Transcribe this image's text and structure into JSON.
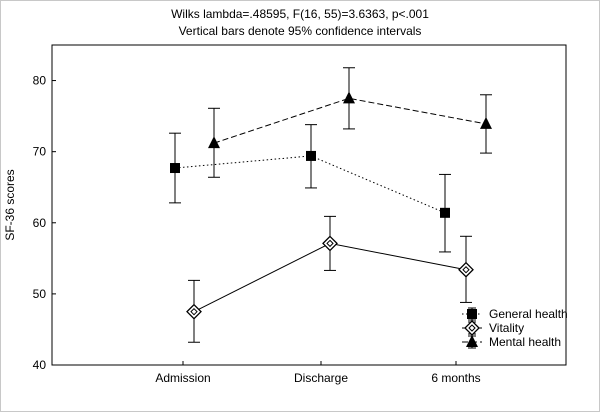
{
  "chart_data": {
    "type": "line",
    "title": "Wilks lambda=.48595, F(16, 55)=3.6363, p<.001",
    "subtitle": "Vertical bars denote 95% confidence intervals",
    "ylabel": "SF-36 scores",
    "xlabel": "",
    "ylim": [
      40,
      85
    ],
    "yticks": [
      40,
      50,
      60,
      70,
      80
    ],
    "categories": [
      "Admission",
      "Discharge",
      "6 months"
    ],
    "legend_position": "bottom-right",
    "grid": false,
    "series": [
      {
        "name": "General health",
        "marker": "square",
        "line_style": "dotted",
        "values": [
          67.7,
          69.4,
          61.4
        ],
        "ci_low": [
          62.8,
          64.9,
          55.9
        ],
        "ci_high": [
          72.6,
          73.8,
          66.8
        ]
      },
      {
        "name": "Vitality",
        "marker": "diamond-open",
        "line_style": "solid",
        "values": [
          47.5,
          57.1,
          53.4
        ],
        "ci_low": [
          43.2,
          53.3,
          48.8
        ],
        "ci_high": [
          51.9,
          60.9,
          58.1
        ]
      },
      {
        "name": "Mental health",
        "marker": "triangle",
        "line_style": "dashed",
        "values": [
          71.2,
          77.5,
          73.9
        ],
        "ci_low": [
          66.4,
          73.2,
          69.8
        ],
        "ci_high": [
          76.1,
          81.8,
          78.0
        ]
      }
    ]
  }
}
